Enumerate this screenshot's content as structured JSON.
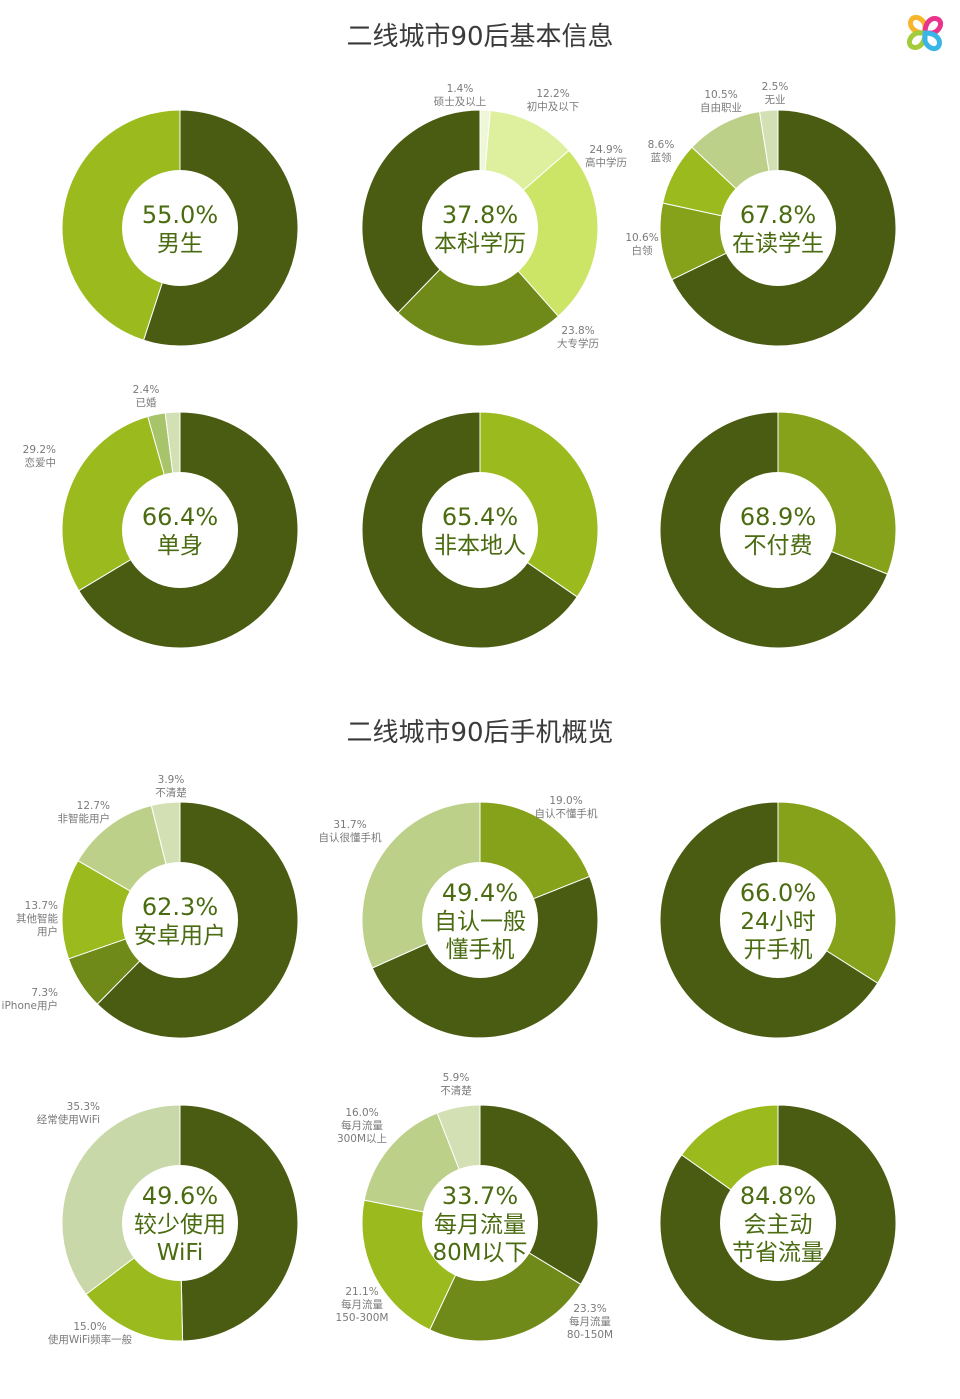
{
  "titles": {
    "section1": "二线城市90后基本信息",
    "section2": "二线城市90后手机概览"
  },
  "logo": {
    "name": "clover-logo",
    "colors": [
      "#f7b52c",
      "#e8348b",
      "#3ab6e6",
      "#a4cc3a"
    ]
  },
  "chart_data": [
    {
      "type": "pie",
      "center_value": "55.0%",
      "center_lines": [
        "男生"
      ],
      "slices": [
        {
          "value": 55.0,
          "color": "#4a5c12",
          "label": []
        },
        {
          "value": 45.0,
          "color": "#9aba1e",
          "label": []
        }
      ]
    },
    {
      "type": "pie",
      "center_value": "37.8%",
      "center_lines": [
        "本科学历"
      ],
      "slices": [
        {
          "value": 1.4,
          "color": "#f0f7d8",
          "label": [
            "1.4%",
            "硕士及以上"
          ]
        },
        {
          "value": 12.2,
          "color": "#deef9e",
          "label": [
            "12.2%",
            "初中及以下"
          ]
        },
        {
          "value": 24.9,
          "color": "#cce566",
          "label": [
            "24.9%",
            "高中学历"
          ]
        },
        {
          "value": 23.8,
          "color": "#6f8a18",
          "label": [
            "23.8%",
            "大专学历"
          ]
        },
        {
          "value": 37.8,
          "color": "#4a5c12",
          "label": []
        }
      ]
    },
    {
      "type": "pie",
      "center_value": "67.8%",
      "center_lines": [
        "在读学生"
      ],
      "slices": [
        {
          "value": 67.8,
          "color": "#4a5c12",
          "label": []
        },
        {
          "value": 10.6,
          "color": "#86a21a",
          "label": [
            "10.6%",
            "白领"
          ]
        },
        {
          "value": 8.6,
          "color": "#9aba1e",
          "label": [
            "8.6%",
            "蓝领"
          ]
        },
        {
          "value": 10.5,
          "color": "#bdd08a",
          "label": [
            "10.5%",
            "自由职业"
          ]
        },
        {
          "value": 2.5,
          "color": "#d2e0b4",
          "label": [
            "2.5%",
            "无业"
          ]
        }
      ]
    },
    {
      "type": "pie",
      "center_value": "66.4%",
      "center_lines": [
        "单身"
      ],
      "slices": [
        {
          "value": 66.4,
          "color": "#4a5c12",
          "label": []
        },
        {
          "value": 29.2,
          "color": "#9aba1e",
          "label": [
            "29.2%",
            "恋爱中"
          ]
        },
        {
          "value": 2.4,
          "color": "#a8c46a",
          "label": [
            "2.4%",
            "已婚"
          ]
        },
        {
          "value": 2.0,
          "color": "#d2e0b4",
          "label": []
        }
      ]
    },
    {
      "type": "pie",
      "center_value": "65.4%",
      "center_lines": [
        "非本地人"
      ],
      "slices": [
        {
          "value": 34.6,
          "color": "#9aba1e",
          "label": []
        },
        {
          "value": 65.4,
          "color": "#4a5c12",
          "label": []
        }
      ]
    },
    {
      "type": "pie",
      "center_value": "68.9%",
      "center_lines": [
        "不付费"
      ],
      "slices": [
        {
          "value": 31.1,
          "color": "#86a21a",
          "label": []
        },
        {
          "value": 68.9,
          "color": "#4a5c12",
          "label": []
        }
      ]
    },
    {
      "type": "pie",
      "center_value": "62.3%",
      "center_lines": [
        "安卓用户"
      ],
      "slices": [
        {
          "value": 62.3,
          "color": "#4a5c12",
          "label": []
        },
        {
          "value": 7.3,
          "color": "#6f8a18",
          "label": [
            "7.3%",
            "iPhone用户"
          ]
        },
        {
          "value": 13.7,
          "color": "#9aba1e",
          "label": [
            "13.7%",
            "其他智能",
            "用户"
          ]
        },
        {
          "value": 12.7,
          "color": "#bdd08a",
          "label": [
            "12.7%",
            "非智能用户"
          ]
        },
        {
          "value": 3.9,
          "color": "#d2e0b4",
          "label": [
            "3.9%",
            "不清楚"
          ]
        }
      ]
    },
    {
      "type": "pie",
      "center_value": "49.4%",
      "center_lines": [
        "自认一般",
        "懂手机"
      ],
      "slices": [
        {
          "value": 19.0,
          "color": "#86a21a",
          "label": [
            "19.0%",
            "自认不懂手机"
          ]
        },
        {
          "value": 49.4,
          "color": "#4a5c12",
          "label": []
        },
        {
          "value": 31.7,
          "color": "#bdd08a",
          "label": [
            "31.7%",
            "自认很懂手机"
          ]
        }
      ]
    },
    {
      "type": "pie",
      "center_value": "66.0%",
      "center_lines": [
        "24小时",
        "开手机"
      ],
      "slices": [
        {
          "value": 34.0,
          "color": "#86a21a",
          "label": []
        },
        {
          "value": 66.0,
          "color": "#4a5c12",
          "label": []
        }
      ]
    },
    {
      "type": "pie",
      "center_value": "49.6%",
      "center_lines": [
        "较少使用",
        "WiFi"
      ],
      "slices": [
        {
          "value": 49.6,
          "color": "#4a5c12",
          "label": []
        },
        {
          "value": 15.0,
          "color": "#9aba1e",
          "label": [
            "15.0%",
            "使用WiFi频率一般"
          ]
        },
        {
          "value": 35.3,
          "color": "#c8d8a8",
          "label": [
            "35.3%",
            "经常使用WiFi"
          ]
        }
      ]
    },
    {
      "type": "pie",
      "center_value": "33.7%",
      "center_lines": [
        "每月流量",
        "80M以下"
      ],
      "slices": [
        {
          "value": 33.7,
          "color": "#4a5c12",
          "label": []
        },
        {
          "value": 23.3,
          "color": "#6f8a18",
          "label": [
            "23.3%",
            "每月流量",
            "80-150M"
          ]
        },
        {
          "value": 21.1,
          "color": "#9aba1e",
          "label": [
            "21.1%",
            "每月流量",
            "150-300M"
          ]
        },
        {
          "value": 16.0,
          "color": "#bdd08a",
          "label": [
            "16.0%",
            "每月流量",
            "300M以上"
          ]
        },
        {
          "value": 5.9,
          "color": "#d2e0b4",
          "label": [
            "5.9%",
            "不清楚"
          ]
        }
      ]
    },
    {
      "type": "pie",
      "center_value": "84.8%",
      "center_lines": [
        "会主动",
        "节省流量"
      ],
      "slices": [
        {
          "value": 84.8,
          "color": "#4a5c12",
          "label": []
        },
        {
          "value": 15.2,
          "color": "#9aba1e",
          "label": []
        }
      ]
    }
  ]
}
